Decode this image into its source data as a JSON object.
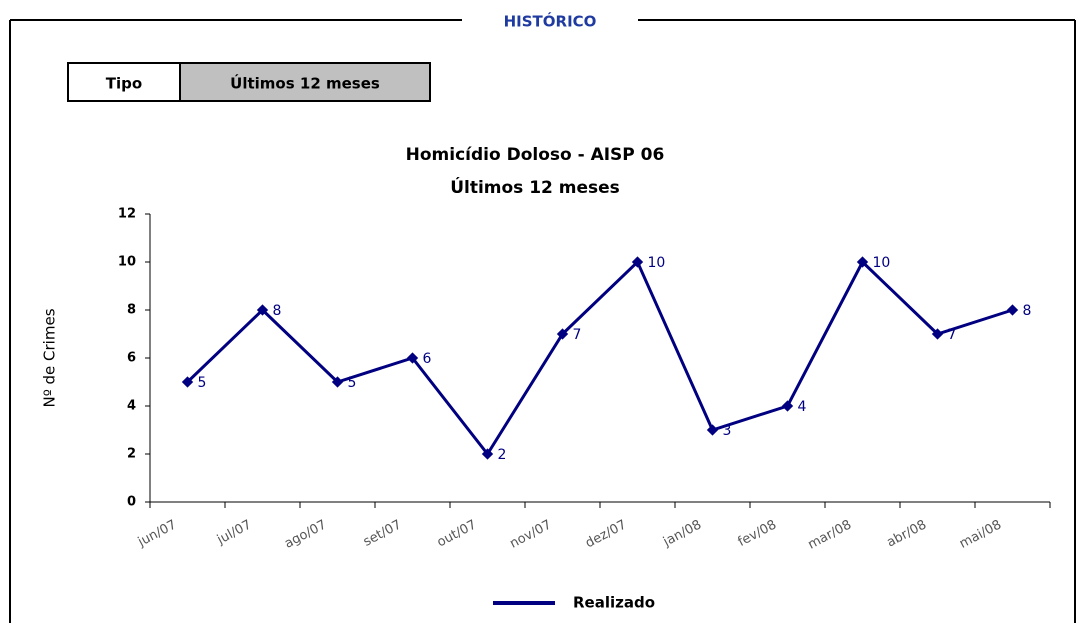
{
  "header": {
    "title": "HISTÓRICO"
  },
  "tabs": [
    "Tipo",
    "Últimos 12 meses"
  ],
  "chart_data": {
    "type": "line",
    "title": "Homicídio Doloso  -  AISP 06",
    "subtitle": "Últimos 12 meses",
    "y_label": "Nº de Crimes",
    "categories": [
      "jun/07",
      "jul/07",
      "ago/07",
      "set/07",
      "out/07",
      "nov/07",
      "dez/07",
      "jan/08",
      "fev/08",
      "mar/08",
      "abr/08",
      "mai/08"
    ],
    "series": [
      {
        "name": "Realizado",
        "color": "#000080",
        "values": [
          5,
          8,
          5,
          6,
          2,
          7,
          10,
          3,
          4,
          10,
          7,
          8
        ]
      }
    ],
    "ylim": [
      0,
      12
    ],
    "yticks": [
      0,
      2,
      4,
      6,
      8,
      10,
      12
    ],
    "grid": false,
    "legend": "bottom"
  }
}
